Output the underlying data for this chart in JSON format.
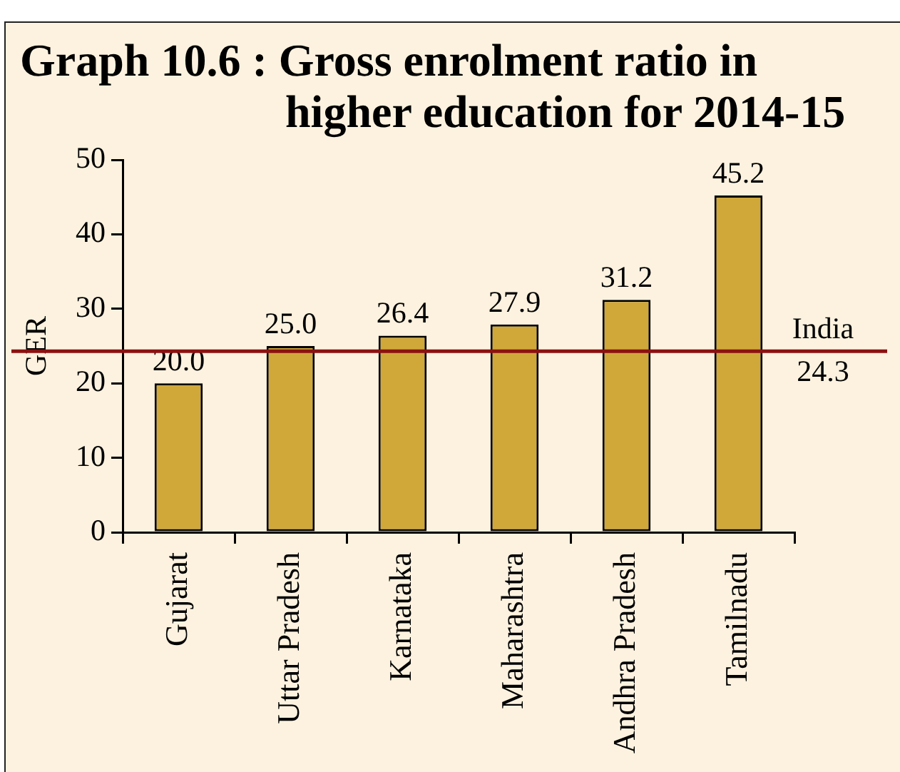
{
  "chart_data": {
    "type": "bar",
    "title": "Graph 10.6 : Gross enrolment ratio in higher education for 2014-15",
    "ylabel": "GER",
    "categories": [
      "Gujarat",
      "Uttar Pradesh",
      "Karnataka",
      "Maharashtra",
      "Andhra Pradesh",
      "Tamilnadu"
    ],
    "values": [
      20.0,
      25.0,
      26.4,
      27.9,
      31.2,
      45.2
    ],
    "value_labels": [
      "20.0",
      "25.0",
      "26.4",
      "27.9",
      "31.2",
      "45.2"
    ],
    "color": "#d0a83a",
    "ylim": [
      0,
      50
    ],
    "yticks": [
      0,
      10,
      20,
      30,
      40,
      50
    ],
    "ref_lines": [
      {
        "axis": "y",
        "value": 24.3,
        "label": "India 24.3",
        "color": "#8b1111"
      }
    ]
  }
}
